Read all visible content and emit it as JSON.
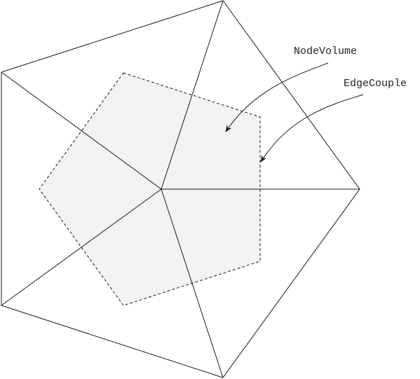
{
  "labels": {
    "node_volume": "NodeVolume",
    "edge_couple": "EdgeCouple"
  },
  "colors": {
    "background": "#ffffff",
    "line": "#1a1a1a",
    "dual_fill": "#f2f2f2",
    "label_text": "#222222"
  }
}
